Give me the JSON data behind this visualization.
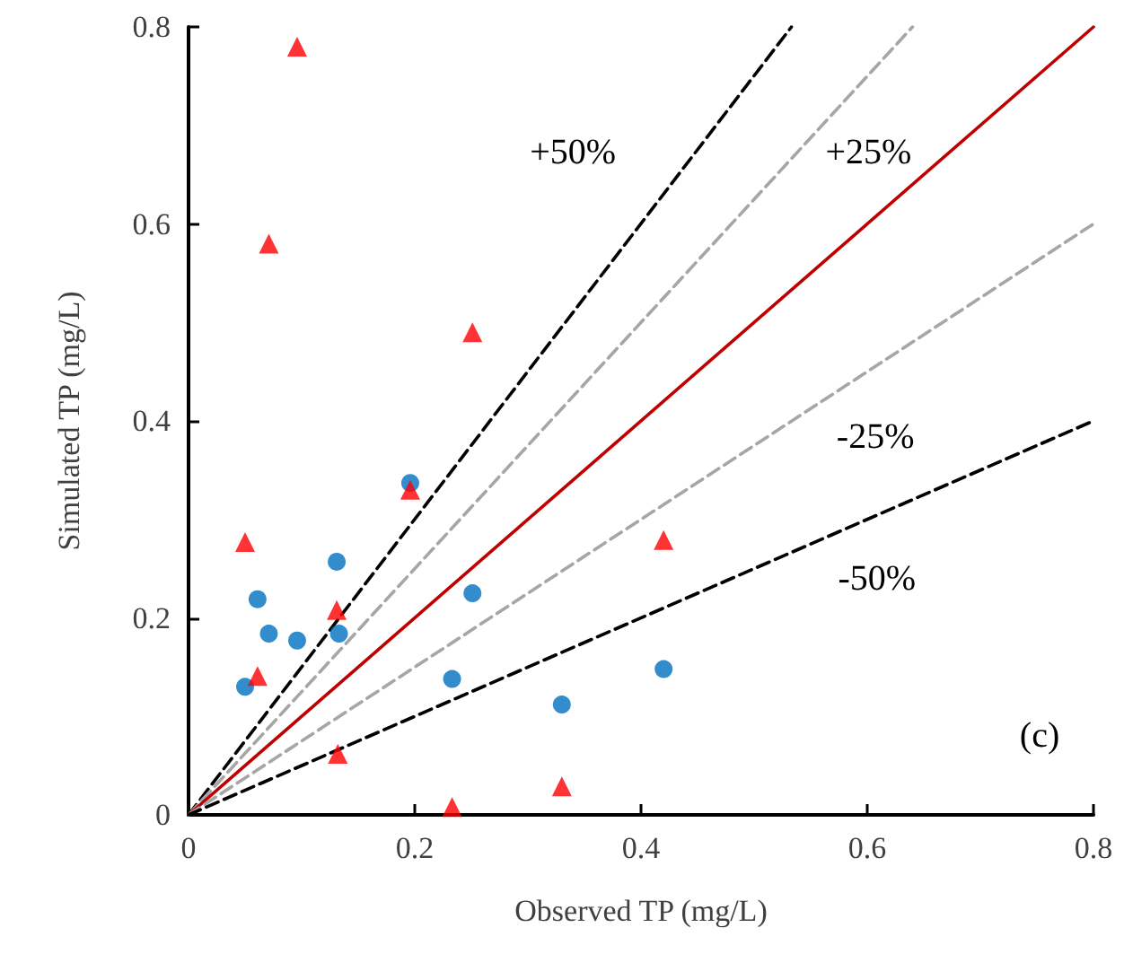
{
  "chart_data": {
    "type": "scatter",
    "xlabel": "Observed TP (mg/L)",
    "ylabel": "Simulated TP (mg/L)",
    "xlim": [
      0,
      0.8
    ],
    "ylim": [
      0,
      0.8
    ],
    "xticks": [
      0,
      0.2,
      0.4,
      0.6,
      0.8
    ],
    "yticks": [
      0,
      0.2,
      0.4,
      0.6,
      0.8
    ],
    "grid": false,
    "series": [
      {
        "type": "line",
        "name": "+50%",
        "color": "#000000",
        "line_style": "dashed",
        "marker": "none",
        "x": [
          0,
          0.533
        ],
        "values": [
          0,
          0.8
        ]
      },
      {
        "type": "line",
        "name": "+25%",
        "color": "#a6a6a6",
        "line_style": "dashed",
        "marker": "none",
        "x": [
          0,
          0.64
        ],
        "values": [
          0,
          0.8
        ]
      },
      {
        "type": "line",
        "color": "#c00000",
        "line_style": "solid",
        "marker": "none",
        "x": [
          0,
          0.8
        ],
        "values": [
          0,
          0.8
        ]
      },
      {
        "type": "line",
        "name": "-25%",
        "color": "#a6a6a6",
        "line_style": "dashed",
        "marker": "none",
        "x": [
          0,
          0.8
        ],
        "values": [
          0,
          0.6
        ]
      },
      {
        "type": "line",
        "name": "-50%",
        "color": "#000000",
        "line_style": "dashed",
        "marker": "none",
        "x": [
          0,
          0.8
        ],
        "values": [
          0,
          0.4
        ]
      },
      {
        "color": "#0070c0",
        "marker": "circle",
        "x": [
          0.05,
          0.061,
          0.071,
          0.096,
          0.131,
          0.133,
          0.196,
          0.251,
          0.233,
          0.33,
          0.42
        ],
        "values": [
          0.13,
          0.219,
          0.184,
          0.177,
          0.257,
          0.184,
          0.337,
          0.225,
          0.138,
          0.112,
          0.148
        ]
      },
      {
        "color": "#ff0000",
        "marker": "triangle",
        "x": [
          0.096,
          0.071,
          0.05,
          0.251,
          0.196,
          0.131,
          0.061,
          0.132,
          0.233,
          0.33,
          0.42
        ],
        "values": [
          0.78,
          0.58,
          0.277,
          0.49,
          0.33,
          0.208,
          0.141,
          0.062,
          0.008,
          0.029,
          0.279
        ]
      }
    ],
    "annotations": [
      "(c)"
    ]
  }
}
